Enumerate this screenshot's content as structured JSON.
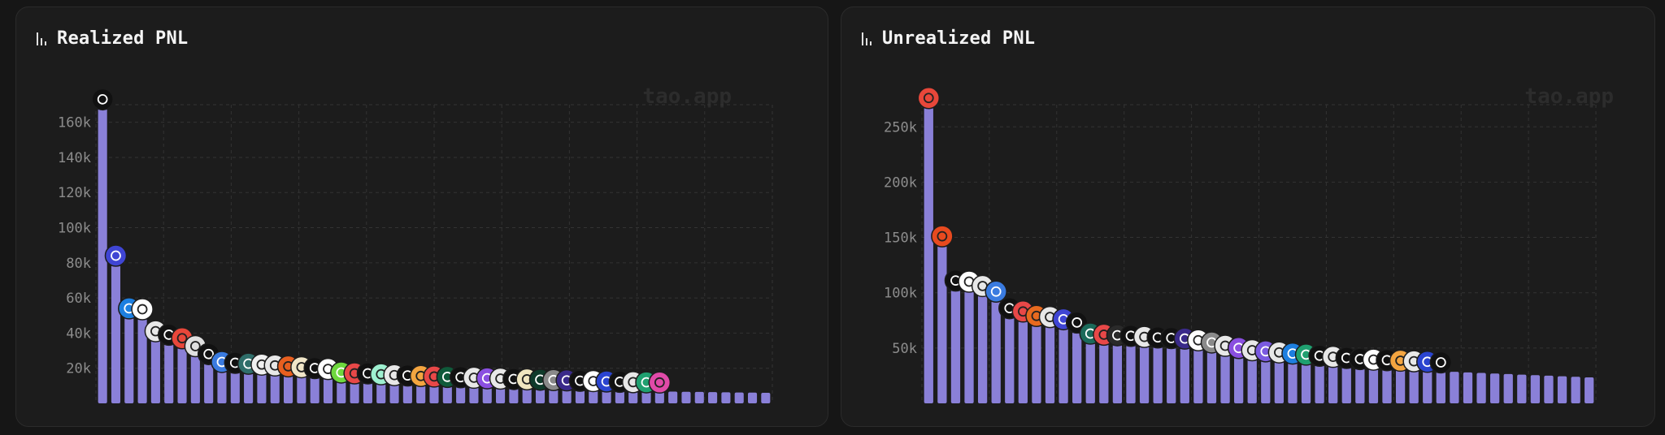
{
  "charts": [
    {
      "title": "Realized PNL",
      "watermark": "tao.app",
      "chart_data": {
        "type": "bar",
        "title": "Realized PNL",
        "xlabel": "",
        "ylabel": "",
        "ylim": [
          0,
          170000
        ],
        "yticks": [
          "20k",
          "40k",
          "60k",
          "80k",
          "100k",
          "120k",
          "140k",
          "160k"
        ],
        "ytick_values": [
          20000,
          40000,
          60000,
          80000,
          100000,
          120000,
          140000,
          160000
        ],
        "grid": true,
        "bar_color": "#8a80d8",
        "values": [
          168000,
          79000,
          49000,
          48500,
          36000,
          34000,
          32000,
          27500,
          23000,
          18500,
          18000,
          17500,
          17000,
          16500,
          16000,
          15500,
          15000,
          14500,
          12500,
          12000,
          12000,
          11500,
          11000,
          10800,
          10500,
          10200,
          10000,
          9800,
          9500,
          9200,
          9000,
          8800,
          8600,
          8400,
          8200,
          8000,
          7800,
          7600,
          7400,
          7200,
          7000,
          6900,
          6800,
          6700,
          6600,
          6500,
          6400,
          6300,
          6200,
          6100,
          6000
        ],
        "icon_colors": [
          "#111111",
          "#3f45d4",
          "#1d7fe0",
          "#ffffff",
          "#e8e8e8",
          "#111111",
          "#e8473a",
          "#e0e0e0",
          "#111111",
          "#3a7be0",
          "#111111",
          "#2f6e6a",
          "#f0f0f0",
          "#e8e8e8",
          "#e85f1f",
          "#f0e6c8",
          "#111111",
          "#ffffff",
          "#6fd83e",
          "#e84848",
          "#111111",
          "#9ef0d0",
          "#e8e8e8",
          "#111111",
          "#f4a540",
          "#e84848",
          "#0f5a3a",
          "#111111",
          "#e8e8e8",
          "#8a4fe0",
          "#e8e8e8",
          "#111111",
          "#f0e6c0",
          "#0f3a2a",
          "#8a8a8a",
          "#3a2a8a",
          "#111111",
          "#ffffff",
          "#2a44d0",
          "#111111",
          "#e8e8e8",
          "#1fa070",
          "#e04aa8"
        ]
      }
    },
    {
      "title": "Unrealized PNL",
      "watermark": "tao.app",
      "chart_data": {
        "type": "bar",
        "title": "Unrealized PNL",
        "xlabel": "",
        "ylabel": "",
        "ylim": [
          0,
          270000
        ],
        "yticks": [
          "50k",
          "100k",
          "150k",
          "200k",
          "250k"
        ],
        "ytick_values": [
          50000,
          100000,
          150000,
          200000,
          250000
        ],
        "grid": true,
        "bar_color": "#8a80d8",
        "values": [
          268000,
          143000,
          103000,
          102000,
          98000,
          93000,
          78000,
          75000,
          71000,
          70000,
          68000,
          65000,
          55000,
          54000,
          53500,
          53000,
          52000,
          51500,
          51000,
          50500,
          49000,
          47000,
          44000,
          42000,
          40000,
          39000,
          38000,
          37000,
          36000,
          35000,
          34000,
          33000,
          32000,
          31500,
          31000,
          30500,
          30000,
          29500,
          29000,
          28500,
          28000,
          27500,
          27000,
          26500,
          26000,
          25500,
          25000,
          24500,
          24000,
          23500
        ],
        "icon_colors": [
          "#e8473a",
          "#e84a1f",
          "#111111",
          "#ffffff",
          "#e8e8e8",
          "#3a7be0",
          "#111111",
          "#e84848",
          "#e86a1f",
          "#e8e8e8",
          "#3f45d4",
          "#111111",
          "#1a6a5a",
          "#e84848",
          "#2a2a2a",
          "#111111",
          "#e8e8e8",
          "#111111",
          "#111111",
          "#3a2a8a",
          "#ffffff",
          "#8a8a8a",
          "#e8e8e8",
          "#8a4fe0",
          "#e8e8e8",
          "#7a5ae0",
          "#e8e8e8",
          "#1d7fe0",
          "#1fa070",
          "#111111",
          "#e8e8e8",
          "#111111",
          "#111111",
          "#ffffff",
          "#111111",
          "#f4a540",
          "#e8e8e8",
          "#2a44d0",
          "#111111"
        ]
      }
    }
  ]
}
